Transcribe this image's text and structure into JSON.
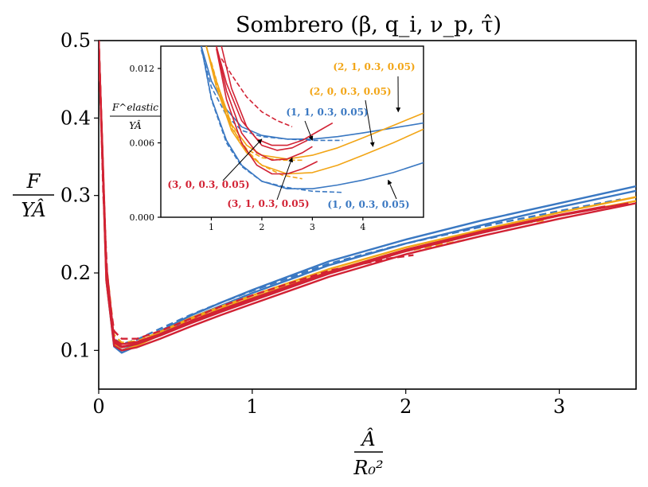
{
  "chart_data": [
    {
      "type": "line",
      "title": "Sombrero (β, q_i, ν_p, τ̂)",
      "xlabel_num": "Â",
      "xlabel_den": "R₀²",
      "ylabel_num": "F",
      "ylabel_den": "YÂ",
      "xlim": [
        0,
        3.5
      ],
      "ylim": [
        0.05,
        0.5
      ],
      "xticks": [
        0,
        1,
        2,
        3
      ],
      "yticks": [
        0.1,
        0.2,
        0.3,
        0.4,
        0.5
      ],
      "colors": {
        "blue": "#3a78c2",
        "orange": "#f2a516",
        "red": "#d22234"
      },
      "series": [
        {
          "color": "blue",
          "dash": false,
          "x": [
            0.0,
            0.05,
            0.1,
            0.15,
            0.25,
            0.4,
            0.6,
            0.8,
            1.0,
            1.5,
            2.0,
            2.5,
            3.0,
            3.5
          ],
          "y": [
            0.5,
            0.2,
            0.11,
            0.1,
            0.108,
            0.125,
            0.145,
            0.162,
            0.178,
            0.215,
            0.243,
            0.268,
            0.29,
            0.312
          ]
        },
        {
          "color": "blue",
          "dash": false,
          "x": [
            0.0,
            0.05,
            0.1,
            0.15,
            0.25,
            0.4,
            0.6,
            0.8,
            1.0,
            1.5,
            2.0,
            2.5,
            3.0,
            3.5
          ],
          "y": [
            0.5,
            0.19,
            0.105,
            0.097,
            0.106,
            0.122,
            0.142,
            0.158,
            0.174,
            0.21,
            0.238,
            0.262,
            0.285,
            0.306
          ]
        },
        {
          "color": "blue",
          "dash": true,
          "x": [
            0.0,
            0.05,
            0.1,
            0.15,
            0.25,
            0.4,
            0.6,
            0.8,
            1.0,
            1.5,
            2.0,
            2.5,
            3.0,
            3.4
          ],
          "y": [
            0.5,
            0.2,
            0.115,
            0.108,
            0.114,
            0.128,
            0.146,
            0.162,
            0.177,
            0.212,
            0.238,
            0.26,
            0.28,
            0.295
          ]
        },
        {
          "color": "orange",
          "dash": false,
          "x": [
            0.0,
            0.05,
            0.1,
            0.15,
            0.25,
            0.4,
            0.6,
            0.8,
            1.0,
            1.5,
            2.0,
            2.5,
            3.0,
            3.5
          ],
          "y": [
            0.5,
            0.19,
            0.108,
            0.1,
            0.106,
            0.12,
            0.138,
            0.154,
            0.168,
            0.202,
            0.23,
            0.253,
            0.274,
            0.293
          ]
        },
        {
          "color": "orange",
          "dash": false,
          "x": [
            0.0,
            0.05,
            0.1,
            0.15,
            0.25,
            0.4,
            0.6,
            0.8,
            1.0,
            1.5,
            2.0,
            2.5,
            3.0,
            3.5
          ],
          "y": [
            0.5,
            0.2,
            0.112,
            0.104,
            0.11,
            0.124,
            0.142,
            0.157,
            0.171,
            0.205,
            0.233,
            0.256,
            0.278,
            0.298
          ]
        },
        {
          "color": "orange",
          "dash": true,
          "x": [
            0.0,
            0.05,
            0.1,
            0.15,
            0.25,
            0.4,
            0.6,
            0.8,
            1.0,
            1.5,
            2.0,
            2.4
          ],
          "y": [
            0.5,
            0.21,
            0.12,
            0.11,
            0.112,
            0.124,
            0.14,
            0.155,
            0.168,
            0.2,
            0.228,
            0.243
          ]
        },
        {
          "color": "orange",
          "dash": true,
          "x": [
            2.0,
            2.4,
            2.8,
            2.9
          ],
          "y": [
            0.23,
            0.248,
            0.265,
            0.268
          ]
        },
        {
          "color": "red",
          "dash": false,
          "x": [
            0.0,
            0.05,
            0.1,
            0.15,
            0.25,
            0.4,
            0.6,
            0.8,
            1.0,
            1.5,
            2.0,
            2.5,
            3.0,
            3.5
          ],
          "y": [
            0.5,
            0.19,
            0.106,
            0.1,
            0.104,
            0.115,
            0.131,
            0.146,
            0.16,
            0.195,
            0.224,
            0.248,
            0.27,
            0.29
          ]
        },
        {
          "color": "red",
          "dash": false,
          "x": [
            0.0,
            0.05,
            0.1,
            0.15,
            0.25,
            0.4,
            0.6,
            0.8,
            1.0,
            1.5,
            2.0,
            2.5,
            3.0,
            3.45
          ],
          "y": [
            0.5,
            0.2,
            0.11,
            0.104,
            0.108,
            0.119,
            0.135,
            0.15,
            0.164,
            0.199,
            0.228,
            0.252,
            0.274,
            0.29
          ]
        },
        {
          "color": "red",
          "dash": false,
          "x": [
            0.0,
            0.05,
            0.1,
            0.15,
            0.25,
            0.4,
            0.6,
            0.8,
            1.0,
            1.5,
            1.9
          ],
          "y": [
            0.5,
            0.21,
            0.114,
            0.108,
            0.111,
            0.121,
            0.137,
            0.152,
            0.166,
            0.2,
            0.222
          ]
        },
        {
          "color": "red",
          "dash": false,
          "x": [
            0.0,
            0.05,
            0.1,
            0.15,
            0.25,
            0.4,
            0.6,
            0.8,
            1.0,
            1.5,
            2.0,
            2.5,
            3.0,
            3.3
          ],
          "y": [
            0.5,
            0.2,
            0.112,
            0.105,
            0.109,
            0.121,
            0.138,
            0.153,
            0.167,
            0.201,
            0.23,
            0.254,
            0.275,
            0.286
          ]
        },
        {
          "color": "red",
          "dash": true,
          "x": [
            0.0,
            0.03,
            0.06,
            0.1,
            0.15,
            0.25,
            0.4,
            0.6,
            0.8,
            1.0,
            1.5,
            1.9,
            2.05
          ],
          "y": [
            0.5,
            0.3,
            0.18,
            0.125,
            0.115,
            0.115,
            0.125,
            0.141,
            0.157,
            0.171,
            0.203,
            0.219,
            0.223
          ]
        }
      ]
    },
    {
      "type": "line",
      "ylabel_num": "F^elastic",
      "ylabel_den": "YÂ",
      "xlim": [
        0,
        5.2
      ],
      "ylim": [
        0,
        0.0138
      ],
      "xticks": [
        1,
        2,
        3,
        4
      ],
      "yticks": [
        "0.000",
        "0.006",
        "0.012"
      ],
      "ytick_values": [
        0,
        0.006,
        0.012
      ],
      "series": [
        {
          "color": "blue",
          "dash": false,
          "x": [
            0.8,
            1.0,
            1.3,
            1.6,
            2.0,
            2.5,
            3.0,
            3.5,
            4.0,
            4.6,
            5.2
          ],
          "y": [
            0.0138,
            0.011,
            0.0087,
            0.0073,
            0.0066,
            0.0063,
            0.0063,
            0.0065,
            0.0068,
            0.0072,
            0.0076
          ]
        },
        {
          "color": "blue",
          "dash": false,
          "x": [
            0.8,
            1.0,
            1.3,
            1.6,
            2.0,
            2.5,
            3.0,
            3.5,
            4.0,
            4.6,
            5.2
          ],
          "y": [
            0.0138,
            0.0096,
            0.0062,
            0.0042,
            0.0029,
            0.0023,
            0.0023,
            0.0026,
            0.003,
            0.0036,
            0.0044
          ]
        },
        {
          "color": "blue",
          "dash": true,
          "x": [
            0.8,
            1.0,
            1.3,
            1.6,
            2.0,
            2.5,
            3.0,
            3.6
          ],
          "y": [
            0.0135,
            0.0105,
            0.0082,
            0.007,
            0.0065,
            0.0063,
            0.0062,
            0.0062
          ]
        },
        {
          "color": "blue",
          "dash": true,
          "x": [
            0.8,
            1.0,
            1.3,
            1.6,
            2.0,
            2.5,
            3.0,
            3.6
          ],
          "y": [
            0.0138,
            0.0095,
            0.006,
            0.0041,
            0.0029,
            0.0024,
            0.0021,
            0.002
          ]
        },
        {
          "color": "orange",
          "dash": false,
          "x": [
            0.9,
            1.1,
            1.4,
            1.7,
            2.0,
            2.5,
            3.0,
            3.5,
            4.0,
            4.6,
            5.2
          ],
          "y": [
            0.0138,
            0.011,
            0.0075,
            0.0058,
            0.005,
            0.0047,
            0.005,
            0.0056,
            0.0064,
            0.0074,
            0.0084
          ]
        },
        {
          "color": "orange",
          "dash": false,
          "x": [
            0.9,
            1.1,
            1.4,
            1.7,
            2.0,
            2.5,
            3.0,
            3.5,
            4.0,
            4.6,
            5.2
          ],
          "y": [
            0.0138,
            0.0105,
            0.007,
            0.0052,
            0.0042,
            0.0035,
            0.0036,
            0.0042,
            0.005,
            0.006,
            0.0071
          ]
        },
        {
          "color": "orange",
          "dash": true,
          "x": [
            0.9,
            1.1,
            1.4,
            1.7,
            2.0,
            2.4,
            2.8
          ],
          "y": [
            0.0138,
            0.0108,
            0.0072,
            0.0055,
            0.0048,
            0.0046,
            0.0046
          ]
        },
        {
          "color": "orange",
          "dash": true,
          "x": [
            1.0,
            1.3,
            1.6,
            2.0,
            2.4,
            2.8
          ],
          "y": [
            0.0125,
            0.0082,
            0.0058,
            0.0042,
            0.0034,
            0.0031
          ]
        },
        {
          "color": "red",
          "dash": false,
          "x": [
            1.1,
            1.3,
            1.6,
            1.9,
            2.2,
            2.5,
            2.8,
            3.1,
            3.4
          ],
          "y": [
            0.0138,
            0.0108,
            0.0078,
            0.0063,
            0.0058,
            0.0058,
            0.0062,
            0.0069,
            0.0076
          ]
        },
        {
          "color": "red",
          "dash": false,
          "x": [
            1.1,
            1.3,
            1.6,
            1.9,
            2.2,
            2.5,
            2.8,
            3.0
          ],
          "y": [
            0.0138,
            0.0102,
            0.0068,
            0.0052,
            0.0046,
            0.0047,
            0.0052,
            0.0057
          ]
        },
        {
          "color": "red",
          "dash": false,
          "x": [
            1.1,
            1.3,
            1.6,
            1.9,
            2.2,
            2.5,
            2.8,
            3.1
          ],
          "y": [
            0.0136,
            0.0095,
            0.006,
            0.0042,
            0.0035,
            0.0035,
            0.0039,
            0.0045
          ]
        },
        {
          "color": "red",
          "dash": false,
          "x": [
            1.2,
            1.4,
            1.7,
            2.0,
            2.3,
            2.6,
            2.9
          ],
          "y": [
            0.0138,
            0.0104,
            0.0073,
            0.0058,
            0.0054,
            0.0056,
            0.0062
          ]
        },
        {
          "color": "red",
          "dash": true,
          "x": [
            1.2,
            1.4,
            1.7,
            2.0,
            2.3,
            2.6
          ],
          "y": [
            0.0128,
            0.0115,
            0.0097,
            0.0085,
            0.0078,
            0.0073
          ]
        }
      ],
      "annotations": [
        {
          "text": "(2, 1, 0.3, 0.05)",
          "color": "orange",
          "point": [
            4.7,
            0.0085
          ]
        },
        {
          "text": "(2, 0, 0.3, 0.05)",
          "color": "orange",
          "point": [
            4.2,
            0.0057
          ]
        },
        {
          "text": "(1, 1, 0.3, 0.05)",
          "color": "blue",
          "point": [
            3.0,
            0.0062
          ]
        },
        {
          "text": "(3, 0, 0.3, 0.05)",
          "color": "red",
          "point": [
            2.0,
            0.0063
          ]
        },
        {
          "text": "(3, 1, 0.3, 0.05)",
          "color": "red",
          "point": [
            2.6,
            0.0048
          ]
        },
        {
          "text": "(1, 0, 0.3, 0.05)",
          "color": "blue",
          "point": [
            4.5,
            0.003
          ]
        }
      ]
    }
  ]
}
